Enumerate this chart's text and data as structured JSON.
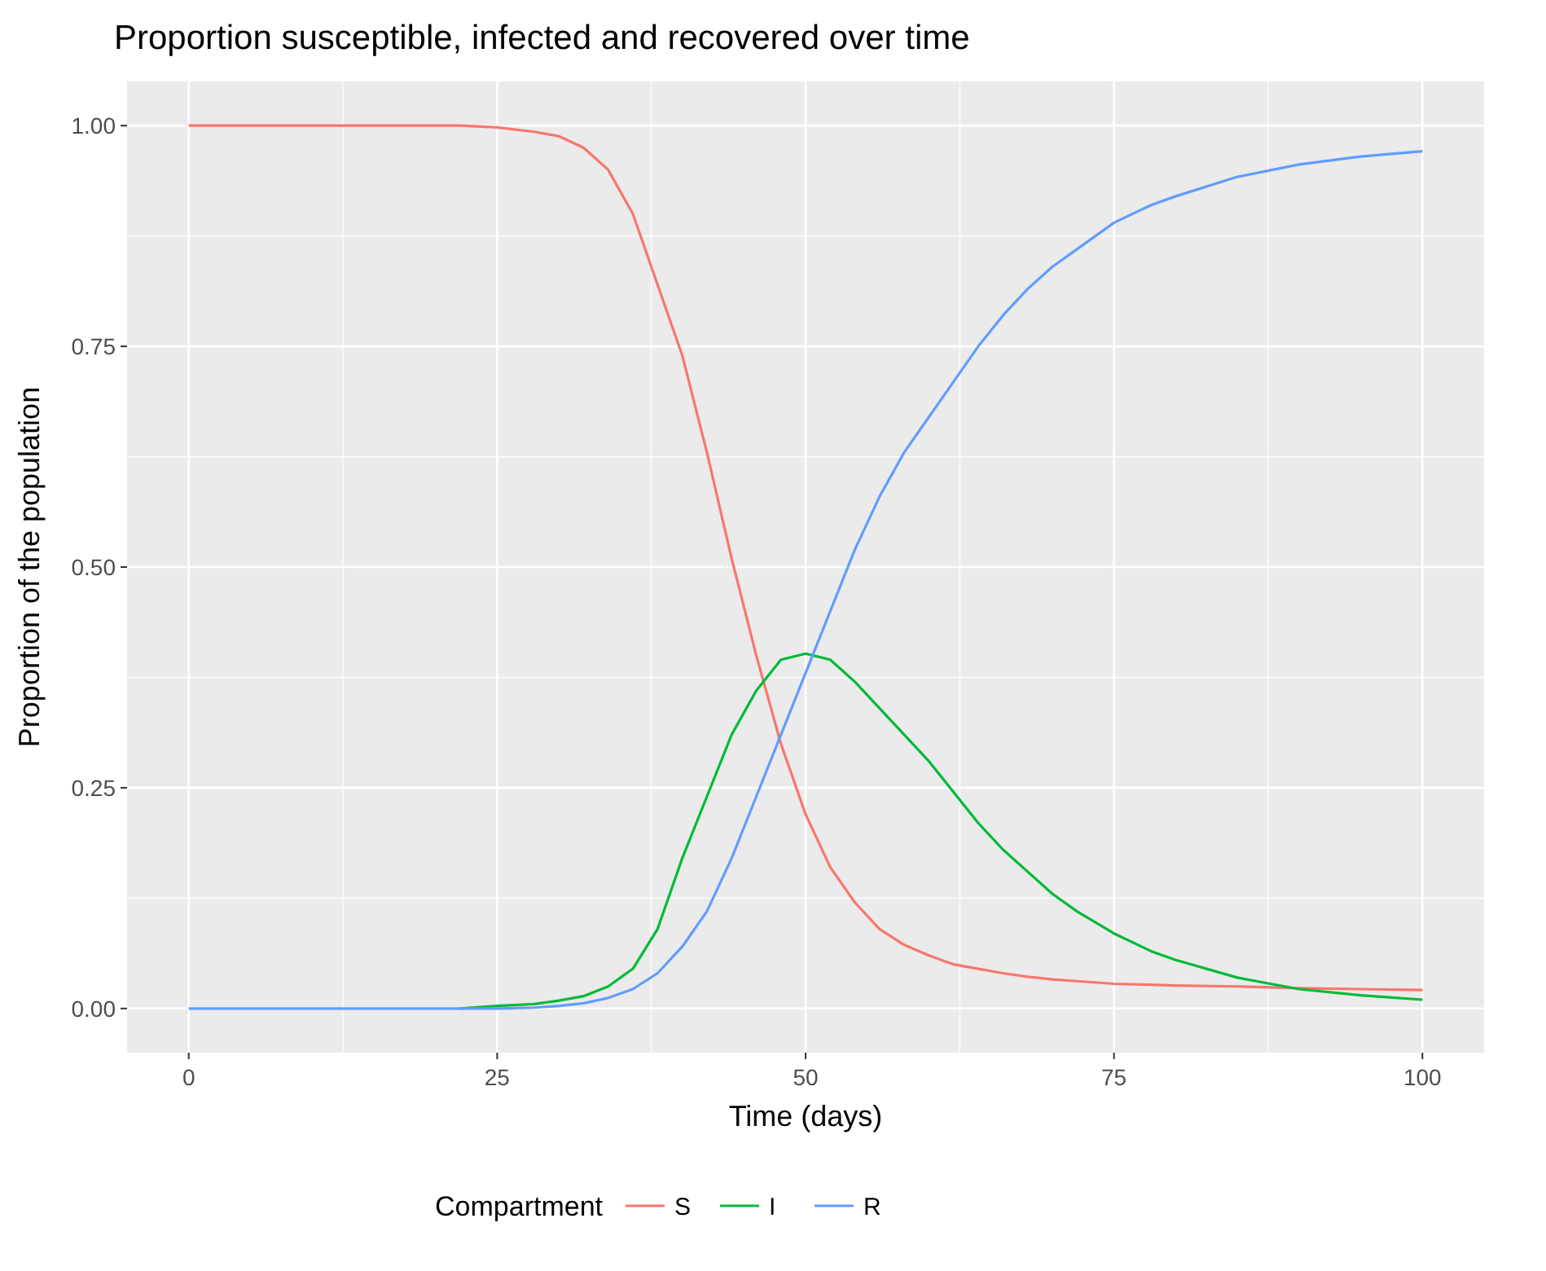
{
  "chart_data": {
    "type": "line",
    "title": "Proportion susceptible, infected and recovered over time",
    "xlabel": "Time (days)",
    "ylabel": "Proportion of the population",
    "legend_title": "Compartment",
    "legend": "bottom",
    "grid": true,
    "line_style": "solid",
    "xlim": [
      -5,
      105
    ],
    "ylim": [
      -0.05,
      1.05
    ],
    "xticks": [
      0,
      25,
      50,
      75,
      100
    ],
    "yticks": [
      {
        "value": 0,
        "label": "0.00"
      },
      {
        "value": 0.25,
        "label": "0.25"
      },
      {
        "value": 0.5,
        "label": "0.50"
      },
      {
        "value": 0.75,
        "label": "0.75"
      },
      {
        "value": 1,
        "label": "1.00"
      }
    ],
    "x": [
      0,
      10,
      20,
      22,
      25,
      28,
      30,
      32,
      34,
      36,
      38,
      40,
      42,
      44,
      46,
      48,
      50,
      52,
      54,
      56,
      58,
      60,
      62,
      64,
      66,
      68,
      70,
      72,
      75,
      78,
      80,
      85,
      90,
      95,
      100
    ],
    "series": [
      {
        "name": "S",
        "color": "#f8766d",
        "values": [
          1,
          1,
          1,
          1,
          0.998,
          0.993,
          0.988,
          0.975,
          0.95,
          0.9,
          0.82,
          0.74,
          0.63,
          0.51,
          0.4,
          0.3,
          0.22,
          0.16,
          0.12,
          0.09,
          0.072,
          0.06,
          0.05,
          0.045,
          0.04,
          0.036,
          0.033,
          0.031,
          0.028,
          0.027,
          0.026,
          0.025,
          0.023,
          0.022,
          0.021
        ]
      },
      {
        "name": "I",
        "color": "#00ba38",
        "values": [
          null,
          null,
          null,
          0,
          0.003,
          0.005,
          0.009,
          0.014,
          0.025,
          0.045,
          0.09,
          0.17,
          0.24,
          0.31,
          0.36,
          0.395,
          0.402,
          0.395,
          0.37,
          0.34,
          0.31,
          0.28,
          0.245,
          0.21,
          0.18,
          0.155,
          0.13,
          0.11,
          0.085,
          0.065,
          0.055,
          0.035,
          0.022,
          0.015,
          0.01
        ]
      },
      {
        "name": "R",
        "color": "#619cff",
        "values": [
          0,
          0,
          0,
          0,
          0,
          0.001,
          0.003,
          0.006,
          0.012,
          0.022,
          0.04,
          0.07,
          0.11,
          0.17,
          0.24,
          0.31,
          0.38,
          0.45,
          0.52,
          0.58,
          0.63,
          0.67,
          0.71,
          0.75,
          0.785,
          0.815,
          0.84,
          0.86,
          0.89,
          0.91,
          0.92,
          0.942,
          0.956,
          0.965,
          0.971
        ]
      }
    ]
  }
}
